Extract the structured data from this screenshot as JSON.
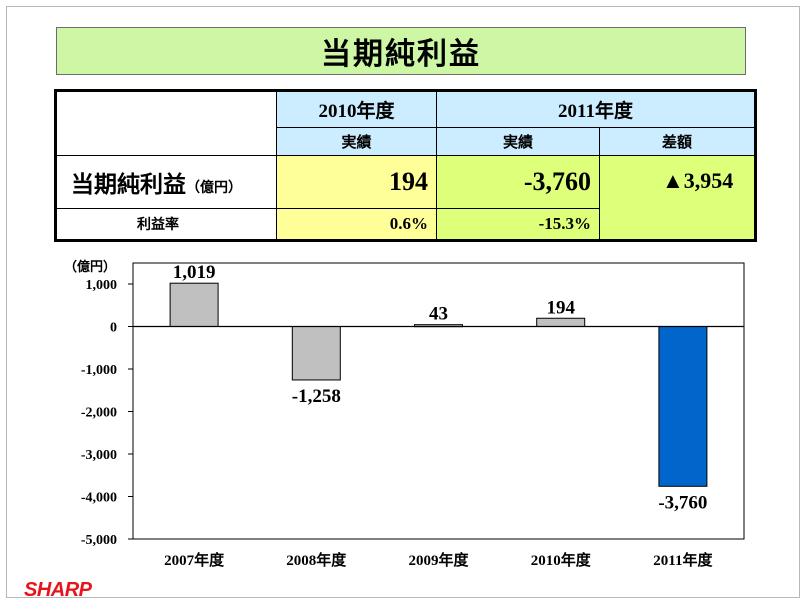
{
  "title": "当期純利益",
  "table": {
    "year_2010": "2010年度",
    "year_2011": "2011年度",
    "actual_2010": "実績",
    "actual_2011": "実績",
    "diff_header": "差額",
    "row1_label": "当期純利益",
    "row1_unit": "（億円）",
    "row1_2010": "194",
    "row1_2011": "-3,760",
    "row1_diff": "▲3,954",
    "row2_label": "利益率",
    "row2_2010": "0.6%",
    "row2_2011": "-15.3%"
  },
  "chart_data": {
    "type": "bar",
    "categories": [
      "2007年度",
      "2008年度",
      "2009年度",
      "2010年度",
      "2011年度"
    ],
    "values": [
      1019,
      -1258,
      43,
      194,
      -3760
    ],
    "data_labels": [
      "1,019",
      "-1,258",
      "43",
      "194",
      "-3,760"
    ],
    "ylabel": "（億円）",
    "ylim": [
      -5000,
      1000
    ],
    "yticks": [
      1000,
      0,
      -1000,
      -2000,
      -3000,
      -4000,
      -5000
    ],
    "ytick_labels": [
      "1,000",
      "0",
      "-1,000",
      "-2,000",
      "-3,000",
      "-4,000",
      "-5,000"
    ],
    "bar_colors": [
      "#c0c0c0",
      "#c0c0c0",
      "#c0c0c0",
      "#c0c0c0",
      "#0066cc"
    ],
    "grid": false
  },
  "logo": "SHARP"
}
